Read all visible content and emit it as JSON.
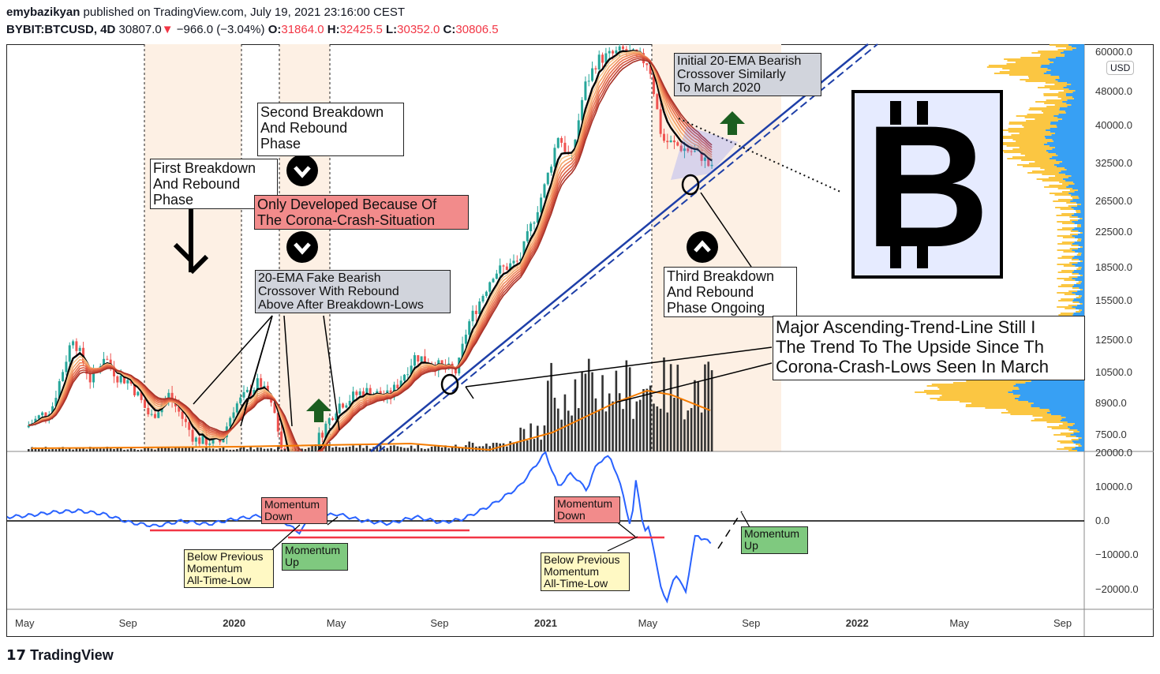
{
  "header": {
    "author": "emybazikyan",
    "published": " published on TradingView.com, July 19, 2021 23:16:00 CEST",
    "symbol": "BYBIT:BTCUSD, 4D",
    "last": " 30807.0",
    "arrow": "▼",
    "change": " −966.0 (−3.04%) ",
    "o_label": "O:",
    "o": "31864.0",
    "h_label": " H:",
    "h": "32425.5",
    "l_label": " L:",
    "l": "30352.0",
    "c_label": " C:",
    "c": "30806.5"
  },
  "axis": {
    "currency": "USD",
    "price_ticks": [
      "60000.0",
      "48000.0",
      "40000.0",
      "32500.0",
      "26500.0",
      "22500.0",
      "18500.0",
      "15500.0",
      "12500.0",
      "10500.0",
      "8900.0",
      "7500.0"
    ],
    "price_values": [
      60000,
      48000,
      40000,
      32500,
      26500,
      22500,
      18500,
      15500,
      12500,
      10500,
      8900,
      7500
    ],
    "momentum_ticks": [
      "20000.0",
      "10000.0",
      "0.0",
      "−10000.0",
      "−20000.0"
    ],
    "momentum_values": [
      20000,
      10000,
      0,
      -10000,
      -20000
    ],
    "time_ticks": [
      "May",
      "Sep",
      "2020",
      "May",
      "Sep",
      "2021",
      "May",
      "Sep",
      "2022",
      "May",
      "Sep"
    ],
    "time_months": [
      0,
      4,
      8,
      12,
      16,
      20,
      24,
      28,
      32,
      36,
      40
    ]
  },
  "annotations": {
    "first": "First Breakdown\nAnd Rebound\nPhase",
    "second": "Second Breakdown\nAnd Rebound\nPhase",
    "corona": "Only Developed Because Of\nThe Corona-Crash-Situation",
    "fake": "20-EMA Fake Bearish\nCrossover With Rebound\nAbove After Breakdown-Lows",
    "initial": "Initial 20-EMA Bearish\nCrossover Similarly\nTo March 2020",
    "third": "Third Breakdown\nAnd Rebound\nPhase Ongoing",
    "major": "Major Ascending-Trend-Line Still I\nThe Trend To The Upside Since Th\nCorona-Crash-Lows Seen In March",
    "mom_down1": "Momentum\nDown",
    "mom_up1": "Momentum\nUp",
    "below1": "Below Previous\nMomentum\nAll-Time-Low",
    "mom_down2": "Momentum\nDown",
    "below2": "Below Previous\nMomentum\nAll-Time-Low",
    "mom_up2": "Momentum\nUp"
  },
  "logo_text": "B",
  "footer": {
    "brand": "TradingView"
  },
  "colors": {
    "up": "#26a69a",
    "down": "#ef5350",
    "profile_up": "#2196f3",
    "profile_down": "#fbc02d",
    "band": "#fdf0e4",
    "momentum": "#2962ff",
    "trend": "#1e3fa8"
  },
  "chart_data": {
    "type": "candlestick",
    "symbol": "BYBIT:BTCUSD",
    "interval": "4D",
    "yscale": "log",
    "ylim": [
      7100,
      62000
    ],
    "price_path": [
      [
        0,
        7800
      ],
      [
        1,
        8700
      ],
      [
        1.8,
        12800
      ],
      [
        2.5,
        10000
      ],
      [
        3,
        11500
      ],
      [
        3.5,
        10300
      ],
      [
        4,
        10000
      ],
      [
        4.8,
        8200
      ],
      [
        5.5,
        9300
      ],
      [
        6.5,
        7300
      ],
      [
        7.5,
        7200
      ],
      [
        8,
        8700
      ],
      [
        9,
        10000
      ],
      [
        9.6,
        8300
      ],
      [
        10.3,
        5000
      ],
      [
        11,
        6900
      ],
      [
        12,
        8800
      ],
      [
        13,
        9500
      ],
      [
        14,
        9200
      ],
      [
        15,
        11500
      ],
      [
        16,
        10800
      ],
      [
        16.6,
        10500
      ],
      [
        17,
        13500
      ],
      [
        18,
        18000
      ],
      [
        19,
        19200
      ],
      [
        20,
        29000
      ],
      [
        20.5,
        38000
      ],
      [
        21,
        33000
      ],
      [
        21.5,
        49000
      ],
      [
        22,
        57000
      ],
      [
        23,
        60000
      ],
      [
        24,
        56000
      ],
      [
        24.5,
        37000
      ],
      [
        25,
        36000
      ],
      [
        26,
        34000
      ],
      [
        26.5,
        31000
      ]
    ],
    "momentum_path": [
      [
        -1,
        1000
      ],
      [
        0,
        1500
      ],
      [
        1,
        2500
      ],
      [
        2,
        3000
      ],
      [
        3,
        2000
      ],
      [
        4,
        -500
      ],
      [
        5,
        -1500
      ],
      [
        6,
        0
      ],
      [
        7,
        -1000
      ],
      [
        8,
        500
      ],
      [
        9,
        1500
      ],
      [
        10,
        -500
      ],
      [
        10.5,
        -3500
      ],
      [
        11,
        1000
      ],
      [
        12,
        2000
      ],
      [
        13,
        0
      ],
      [
        14,
        -800
      ],
      [
        15,
        1200
      ],
      [
        16,
        -500
      ],
      [
        16.8,
        500
      ],
      [
        17.5,
        3000
      ],
      [
        18,
        5000
      ],
      [
        19,
        10000
      ],
      [
        20,
        20000
      ],
      [
        20.5,
        10000
      ],
      [
        21,
        14000
      ],
      [
        21.6,
        9000
      ],
      [
        22,
        17000
      ],
      [
        22.5,
        19000
      ],
      [
        23,
        8000
      ],
      [
        23.3,
        -3000
      ],
      [
        23.5,
        13000
      ],
      [
        23.8,
        -4000
      ],
      [
        24,
        -1000
      ],
      [
        24.4,
        -18000
      ],
      [
        24.7,
        -24000
      ],
      [
        25,
        -15000
      ],
      [
        25.4,
        -21000
      ],
      [
        25.8,
        -3500
      ],
      [
        26,
        -5000
      ],
      [
        26.4,
        -6500
      ]
    ]
  }
}
